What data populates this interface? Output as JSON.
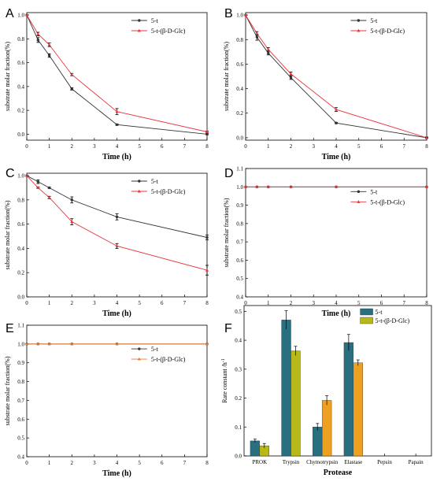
{
  "chart_data": [
    {
      "panel": "A",
      "type": "line",
      "xlabel": "Time (h)",
      "ylabel": "substrate molar fraction(%)",
      "xlim": [
        0,
        8
      ],
      "ylim": [
        -0.05,
        1.02
      ],
      "xticks": [
        0,
        1,
        2,
        3,
        4,
        5,
        6,
        7,
        8
      ],
      "yticks": [
        0.0,
        0.2,
        0.4,
        0.6,
        0.8,
        1.0
      ],
      "xtick_labels": [
        "0",
        "1",
        "2",
        "3",
        "4",
        "5",
        "6",
        "7",
        "8"
      ],
      "ytick_labels": [
        "0.0",
        "0.2",
        "0.4",
        "0.6",
        "0.8",
        "1.0"
      ],
      "legend_position": "top-right",
      "x": [
        0,
        0.5,
        1,
        2,
        4,
        8
      ],
      "series": [
        {
          "name": "5-t",
          "values": [
            1.0,
            0.79,
            0.66,
            0.38,
            0.08,
            0.0
          ],
          "errors": [
            0,
            0.02,
            0.015,
            0.01,
            0.005,
            0.005
          ],
          "color": "#333333",
          "marker": "circle"
        },
        {
          "name": "5-t-(β-D-Glc)",
          "values": [
            1.0,
            0.84,
            0.75,
            0.5,
            0.19,
            0.02
          ],
          "errors": [
            0,
            0.015,
            0.015,
            0.01,
            0.025,
            0.005
          ],
          "color": "#e8343a",
          "marker": "triangle"
        }
      ]
    },
    {
      "panel": "B",
      "type": "line",
      "xlabel": "Time (h)",
      "ylabel": "substrate molar fraction(%)",
      "xlim": [
        0,
        8
      ],
      "ylim": [
        -0.02,
        1.02
      ],
      "xticks": [
        0,
        1,
        2,
        3,
        4,
        5,
        6,
        7,
        8
      ],
      "yticks": [
        0.0,
        0.2,
        0.4,
        0.6,
        0.8,
        1.0
      ],
      "xtick_labels": [
        "0",
        "1",
        "2",
        "3",
        "4",
        "5",
        "6",
        "7",
        "8"
      ],
      "ytick_labels": [
        "0.0",
        "0.2",
        "0.4",
        "0.6",
        "0.8",
        "1.0"
      ],
      "legend_position": "top-right",
      "x": [
        0,
        0.5,
        1,
        2,
        4,
        8
      ],
      "series": [
        {
          "name": "5-t",
          "values": [
            1.0,
            0.82,
            0.69,
            0.49,
            0.12,
            0.0
          ],
          "errors": [
            0,
            0.025,
            0.015,
            0.015,
            0.005,
            0.005
          ],
          "color": "#333333",
          "marker": "circle"
        },
        {
          "name": "5-t-(β-D-Glc)",
          "values": [
            1.0,
            0.85,
            0.72,
            0.52,
            0.23,
            0.0
          ],
          "errors": [
            0,
            0.015,
            0.015,
            0.015,
            0.015,
            0.005
          ],
          "color": "#e8343a",
          "marker": "triangle"
        }
      ]
    },
    {
      "panel": "C",
      "type": "line",
      "xlabel": "Time (h)",
      "ylabel": "substrate molar fraction(%)",
      "xlim": [
        0,
        8
      ],
      "ylim": [
        0.0,
        1.02
      ],
      "xticks": [
        0,
        1,
        2,
        3,
        4,
        5,
        6,
        7,
        8
      ],
      "yticks": [
        0.0,
        0.2,
        0.4,
        0.6,
        0.8,
        1.0
      ],
      "xtick_labels": [
        "0",
        "1",
        "2",
        "3",
        "4",
        "5",
        "6",
        "7",
        "8"
      ],
      "ytick_labels": [
        "0.0",
        "0.2",
        "0.4",
        "0.6",
        "0.8",
        "1.0"
      ],
      "legend_position": "top-right",
      "x": [
        0,
        0.5,
        1,
        2,
        4,
        8
      ],
      "series": [
        {
          "name": "5-t",
          "values": [
            1.0,
            0.95,
            0.9,
            0.8,
            0.66,
            0.49
          ],
          "errors": [
            0,
            0.015,
            0.005,
            0.025,
            0.025,
            0.02
          ],
          "color": "#333333",
          "marker": "circle"
        },
        {
          "name": "5-t-(β-D-Glc)",
          "values": [
            1.0,
            0.9,
            0.82,
            0.62,
            0.42,
            0.22
          ],
          "errors": [
            0,
            0.005,
            0.01,
            0.025,
            0.02,
            0.04
          ],
          "color": "#e8343a",
          "marker": "triangle"
        }
      ]
    },
    {
      "panel": "D",
      "type": "line",
      "xlabel": "Time (h)",
      "ylabel": "substrate molar fraction(%)",
      "xlim": [
        0,
        8
      ],
      "ylim": [
        0.4,
        1.1
      ],
      "xticks": [
        0,
        1,
        2,
        3,
        4,
        5,
        6,
        7,
        8
      ],
      "yticks": [
        0.4,
        0.5,
        0.6,
        0.7,
        0.8,
        0.9,
        1.0,
        1.1
      ],
      "xtick_labels": [
        "0",
        "1",
        "2",
        "3",
        "4",
        "5",
        "6",
        "7",
        "8"
      ],
      "ytick_labels": [
        "0.4",
        "0.5",
        "0.6",
        "0.7",
        "0.8",
        "0.9",
        "1.0",
        "1.1"
      ],
      "legend_position": "center-right",
      "x": [
        0,
        0.5,
        1,
        2,
        4,
        8
      ],
      "series": [
        {
          "name": "5-t",
          "values": [
            1.0,
            1.0,
            1.0,
            1.0,
            1.0,
            1.0
          ],
          "errors": [
            0,
            0,
            0,
            0,
            0,
            0
          ],
          "color": "#333333",
          "marker": "circle"
        },
        {
          "name": "5-t-(β-D-Glc)",
          "values": [
            1.0,
            1.0,
            1.0,
            1.0,
            1.0,
            1.0
          ],
          "errors": [
            0,
            0,
            0,
            0,
            0,
            0
          ],
          "color": "#e8343a",
          "marker": "triangle"
        }
      ]
    },
    {
      "panel": "E",
      "type": "line",
      "xlabel": "Time (h)",
      "ylabel": "substrate molar fraction(%)",
      "xlim": [
        0,
        8
      ],
      "ylim": [
        0.4,
        1.1
      ],
      "xticks": [
        0,
        1,
        2,
        3,
        4,
        5,
        6,
        7,
        8
      ],
      "yticks": [
        0.4,
        0.5,
        0.6,
        0.7,
        0.8,
        0.9,
        1.0,
        1.1
      ],
      "xtick_labels": [
        "0",
        "1",
        "2",
        "3",
        "4",
        "5",
        "6",
        "7",
        "8"
      ],
      "ytick_labels": [
        "0.4",
        "0.5",
        "0.6",
        "0.7",
        "0.8",
        "0.9",
        "1.0",
        "1.1"
      ],
      "legend_position": "center-right",
      "x": [
        0,
        0.5,
        1,
        2,
        4,
        8
      ],
      "series": [
        {
          "name": "5-t",
          "values": [
            1.0,
            1.0,
            1.0,
            1.0,
            1.0,
            1.0
          ],
          "errors": [
            0,
            0,
            0,
            0,
            0,
            0
          ],
          "color": "#333333",
          "marker": "circle"
        },
        {
          "name": "5-t-(β-D-Glc)",
          "values": [
            1.0,
            1.0,
            1.0,
            1.0,
            1.0,
            1.0
          ],
          "errors": [
            0,
            0,
            0,
            0,
            0,
            0
          ],
          "color": "#e07a3a",
          "marker": "triangle"
        }
      ]
    },
    {
      "panel": "F",
      "type": "bar",
      "xlabel": "Protease",
      "ylabel": "Rate constant /h",
      "ylabel_sup": "-1",
      "ylim": [
        0,
        0.52
      ],
      "yticks": [
        0.0,
        0.1,
        0.2,
        0.3,
        0.4,
        0.5
      ],
      "ytick_labels": [
        "0.0",
        "0.1",
        "0.2",
        "0.3",
        "0.4",
        "0.5"
      ],
      "legend_position": "top-right",
      "categories": [
        "PROK",
        "Trypsin",
        "Chymotrypsin",
        "Elastase",
        "Pepsin",
        "Papain"
      ],
      "series": [
        {
          "name": "5-t",
          "values": [
            0.052,
            0.47,
            0.1,
            0.392,
            0,
            0
          ],
          "errors": [
            0.006,
            0.032,
            0.012,
            0.028,
            0,
            0
          ],
          "color": "#2a6f80"
        },
        {
          "name": "5-t-(β-D-Glc)",
          "values": [
            0.035,
            0.363,
            0.192,
            0.322,
            0,
            0
          ],
          "errors": [
            0.008,
            0.016,
            0.016,
            0.01,
            0,
            0
          ],
          "color": "#b8b81a",
          "alt_color": "#f0a020"
        }
      ]
    }
  ]
}
